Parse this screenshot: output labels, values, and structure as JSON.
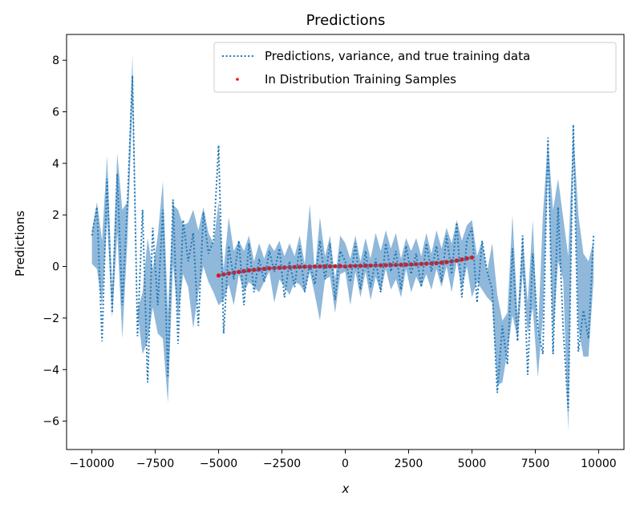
{
  "chart_data": {
    "type": "line",
    "title": "Predictions",
    "xlabel": "x",
    "ylabel": "Predictions",
    "xlim": [
      -11000,
      11000
    ],
    "ylim": [
      -7.1,
      9.0
    ],
    "xticks": [
      -10000,
      -7500,
      -5000,
      -2500,
      0,
      2500,
      5000,
      7500,
      10000
    ],
    "xtick_labels": [
      "−10000",
      "−7500",
      "−5000",
      "−2500",
      "0",
      "2500",
      "5000",
      "7500",
      "10000"
    ],
    "yticks": [
      -6,
      -4,
      -2,
      0,
      2,
      4,
      6,
      8
    ],
    "ytick_labels": [
      "−6",
      "−4",
      "−2",
      "0",
      "2",
      "4",
      "6",
      "8"
    ],
    "grid": false,
    "legend_position": "top-right",
    "colors": {
      "prediction": "#1f77b4",
      "band": "#8ab4d8",
      "samples": "#ff0000",
      "overlap": "#7a4a6e"
    },
    "series": [
      {
        "name": "Predictions, variance, and true training data",
        "style": "dotted",
        "x": [
          -10000,
          -9800,
          -9600,
          -9400,
          -9200,
          -9000,
          -8800,
          -8600,
          -8400,
          -8200,
          -8000,
          -7800,
          -7600,
          -7400,
          -7200,
          -7000,
          -6800,
          -6600,
          -6400,
          -6200,
          -6000,
          -5800,
          -5600,
          -5400,
          -5200,
          -5000,
          -4800,
          -4600,
          -4400,
          -4200,
          -4000,
          -3800,
          -3600,
          -3400,
          -3200,
          -3000,
          -2800,
          -2600,
          -2400,
          -2200,
          -2000,
          -1800,
          -1600,
          -1400,
          -1200,
          -1000,
          -800,
          -600,
          -400,
          -200,
          0,
          200,
          400,
          600,
          800,
          1000,
          1200,
          1400,
          1600,
          1800,
          2000,
          2200,
          2400,
          2600,
          2800,
          3000,
          3200,
          3400,
          3600,
          3800,
          4000,
          4200,
          4400,
          4600,
          4800,
          5000,
          5200,
          5400,
          5600,
          5800,
          6000,
          6200,
          6400,
          6600,
          6800,
          7000,
          7200,
          7400,
          7600,
          7800,
          8000,
          8200,
          8400,
          8600,
          8800,
          9000,
          9200,
          9400,
          9600,
          9800
        ],
        "values": [
          1.2,
          2.3,
          -2.9,
          3.4,
          -1.8,
          3.6,
          -1.5,
          2.4,
          7.4,
          -2.7,
          2.2,
          -4.5,
          1.5,
          -1.5,
          2.2,
          -4.3,
          2.6,
          -3.0,
          1.8,
          0.2,
          1.3,
          -2.3,
          2.1,
          0.5,
          1.0,
          4.7,
          -2.6,
          0.8,
          -0.5,
          1.0,
          -1.5,
          0.9,
          -1.0,
          0.3,
          -0.6,
          0.6,
          -0.2,
          0.7,
          -1.2,
          0.2,
          -0.8,
          0.8,
          -1.0,
          0.1,
          -0.7,
          1.0,
          -0.5,
          0.9,
          -1.3,
          0.6,
          0.2,
          -0.6,
          0.9,
          -0.9,
          0.6,
          -0.8,
          0.3,
          -1.0,
          0.9,
          -0.2,
          0.6,
          -0.9,
          0.8,
          -0.3,
          0.5,
          -0.8,
          0.9,
          -0.2,
          0.8,
          -0.6,
          1.2,
          -0.3,
          1.7,
          -1.2,
          1.0,
          1.5,
          -1.4,
          1.0,
          -0.2,
          -0.9,
          -4.9,
          -2.3,
          -3.8,
          0.7,
          -2.9,
          1.2,
          -4.2,
          0.5,
          -2.4,
          -3.4,
          5.0,
          -3.4,
          2.3,
          -2.4,
          -5.6,
          5.5,
          -3.3,
          -1.7,
          -2.8,
          1.2
        ],
        "lower": [
          0.1,
          -0.1,
          -1.5,
          1.8,
          -2.0,
          1.3,
          -2.8,
          1.0,
          6.4,
          -1.8,
          -3.4,
          -2.9,
          -1.6,
          -2.6,
          -2.8,
          -5.3,
          0.1,
          -2.0,
          -0.3,
          -0.8,
          -2.4,
          -1.0,
          0.0,
          -0.6,
          -1.0,
          -1.5,
          -1.3,
          -0.7,
          -1.5,
          -0.3,
          -1.0,
          -0.6,
          -0.8,
          -1.0,
          -0.6,
          -0.2,
          -1.4,
          -0.5,
          -0.8,
          -1.1,
          -0.6,
          -0.7,
          -1.0,
          -0.2,
          -1.1,
          -2.1,
          -0.5,
          -0.4,
          -1.8,
          -0.3,
          -0.2,
          -1.5,
          -0.2,
          -1.2,
          -0.2,
          -1.3,
          -0.4,
          -1.0,
          -0.1,
          -0.9,
          -0.5,
          -1.2,
          -0.1,
          -1.0,
          -0.4,
          -0.8,
          -0.3,
          -0.9,
          -0.1,
          -0.8,
          0.0,
          -1.0,
          0.2,
          -0.9,
          0.0,
          -1.2,
          -0.6,
          -0.9,
          -1.2,
          -1.4,
          -4.6,
          -4.5,
          -3.3,
          -1.9,
          -2.8,
          -0.3,
          -2.6,
          -1.6,
          -4.3,
          -2.0,
          3.8,
          -2.8,
          0.2,
          -0.5,
          -6.4,
          4.7,
          -2.4,
          -3.5,
          -3.5,
          -0.5
        ],
        "upper": [
          1.4,
          2.5,
          1.0,
          4.3,
          -0.9,
          4.4,
          2.2,
          2.5,
          8.2,
          -1.7,
          -1.0,
          1.1,
          -0.1,
          1.2,
          3.3,
          -1.8,
          2.4,
          2.2,
          1.6,
          1.7,
          2.2,
          1.4,
          2.3,
          1.3,
          0.9,
          2.5,
          -0.1,
          1.9,
          0.6,
          1.0,
          0.6,
          1.2,
          0.2,
          0.9,
          0.3,
          0.9,
          0.6,
          1.0,
          0.4,
          0.9,
          0.4,
          1.2,
          0.1,
          2.4,
          -0.2,
          1.9,
          0.4,
          1.2,
          -0.5,
          1.2,
          0.9,
          0.3,
          1.2,
          0.2,
          1.1,
          0.3,
          1.3,
          0.6,
          1.4,
          0.7,
          1.3,
          0.3,
          1.1,
          0.6,
          1.1,
          0.4,
          1.3,
          0.5,
          1.4,
          0.7,
          1.5,
          0.9,
          1.8,
          1.0,
          1.6,
          1.8,
          0.4,
          1.0,
          -0.2,
          0.9,
          -1.1,
          -2.1,
          -1.8,
          2.0,
          -1.9,
          1.2,
          -1.4,
          1.8,
          -2.8,
          2.0,
          4.9,
          2.2,
          3.4,
          1.9,
          0.4,
          5.3,
          2.0,
          0.5,
          0.2,
          1.0
        ]
      },
      {
        "name": "In Distribution Training Samples",
        "style": "scatter",
        "x": [
          -5000,
          -4800,
          -4600,
          -4400,
          -4200,
          -4000,
          -3800,
          -3600,
          -3400,
          -3200,
          -3000,
          -2800,
          -2600,
          -2400,
          -2200,
          -2000,
          -1800,
          -1600,
          -1400,
          -1200,
          -1000,
          -800,
          -600,
          -400,
          -200,
          0,
          200,
          400,
          600,
          800,
          1000,
          1200,
          1400,
          1600,
          1800,
          2000,
          2200,
          2400,
          2600,
          2800,
          3000,
          3200,
          3400,
          3600,
          3800,
          4000,
          4200,
          4400,
          4600,
          4800,
          5000
        ],
        "values": [
          -0.35,
          -0.31,
          -0.27,
          -0.24,
          -0.21,
          -0.18,
          -0.15,
          -0.13,
          -0.11,
          -0.09,
          -0.07,
          -0.06,
          -0.05,
          -0.04,
          -0.03,
          -0.02,
          -0.015,
          -0.01,
          -0.006,
          -0.003,
          0.0,
          0.003,
          0.006,
          0.01,
          0.015,
          0.0,
          0.015,
          0.02,
          0.025,
          0.03,
          0.035,
          0.04,
          0.045,
          0.05,
          0.055,
          0.06,
          0.065,
          0.07,
          0.08,
          0.09,
          0.1,
          0.11,
          0.12,
          0.13,
          0.15,
          0.17,
          0.2,
          0.23,
          0.27,
          0.31,
          0.35
        ]
      }
    ]
  }
}
